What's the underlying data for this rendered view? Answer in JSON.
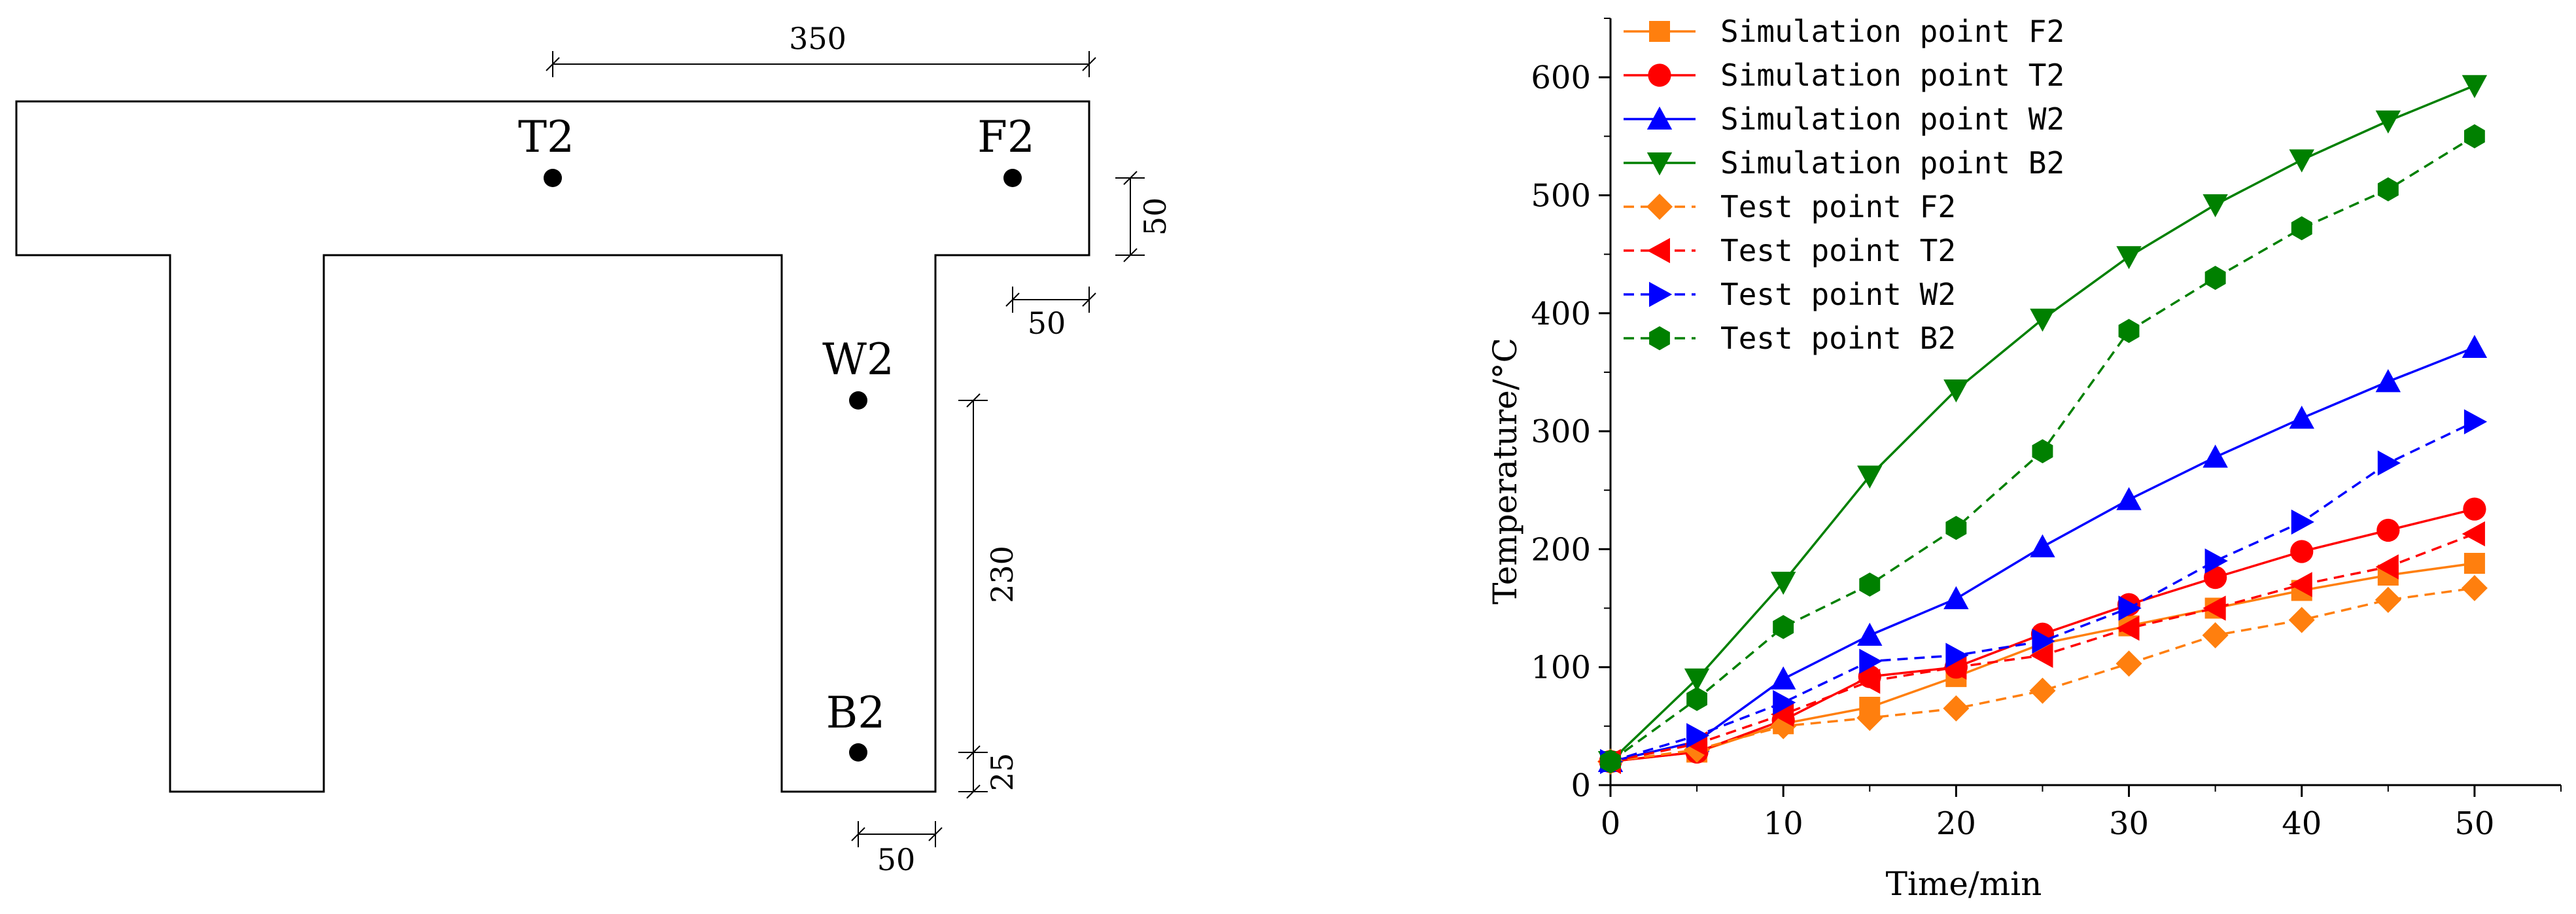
{
  "diagram": {
    "points": [
      {
        "id": "t2",
        "label": "T2"
      },
      {
        "id": "f2",
        "label": "F2"
      },
      {
        "id": "w2",
        "label": "W2"
      },
      {
        "id": "b2",
        "label": "B2"
      }
    ],
    "dimensions": {
      "top_width": "350",
      "flange_thickness": "50",
      "flange_offset": "50",
      "web_height": "230",
      "bottom_offset": "25",
      "bottom_width": "50"
    }
  },
  "chart_data": {
    "type": "line",
    "xlabel": "Time/min",
    "ylabel": "Temperature/°C",
    "xlim": [
      0,
      55
    ],
    "ylim": [
      0,
      650
    ],
    "xticks": [
      0,
      10,
      20,
      30,
      40,
      50
    ],
    "yticks": [
      0,
      100,
      200,
      300,
      400,
      500,
      600
    ],
    "legend_position": "top-left",
    "series": [
      {
        "name": "Simulation point F2",
        "color": "#ff7f0e",
        "marker": "square",
        "dash": "solid",
        "x": [
          0,
          5,
          10,
          15,
          20,
          25,
          30,
          35,
          40,
          45,
          50
        ],
        "y": [
          20,
          28,
          52,
          66,
          92,
          120,
          135,
          150,
          165,
          178,
          188
        ]
      },
      {
        "name": "Simulation point T2",
        "color": "#ff0000",
        "marker": "circle",
        "dash": "solid",
        "x": [
          0,
          5,
          10,
          15,
          20,
          25,
          30,
          35,
          40,
          45,
          50
        ],
        "y": [
          20,
          28,
          55,
          92,
          100,
          128,
          153,
          176,
          198,
          216,
          234
        ]
      },
      {
        "name": "Simulation point W2",
        "color": "#0000ff",
        "marker": "triangle-up",
        "dash": "solid",
        "x": [
          0,
          5,
          10,
          15,
          20,
          25,
          30,
          35,
          40,
          45,
          50
        ],
        "y": [
          20,
          37,
          90,
          127,
          158,
          202,
          242,
          278,
          311,
          342,
          371
        ]
      },
      {
        "name": "Simulation point B2",
        "color": "#008000",
        "marker": "triangle-down",
        "dash": "solid",
        "x": [
          0,
          5,
          10,
          15,
          20,
          25,
          30,
          35,
          40,
          45,
          50
        ],
        "y": [
          20,
          90,
          172,
          262,
          335,
          395,
          448,
          492,
          530,
          563,
          593
        ]
      },
      {
        "name": "Test point F2",
        "color": "#ff7f0e",
        "marker": "diamond",
        "dash": "dashed",
        "x": [
          0,
          5,
          10,
          15,
          20,
          25,
          30,
          35,
          40,
          45,
          50
        ],
        "y": [
          20,
          30,
          50,
          57,
          65,
          80,
          103,
          127,
          140,
          157,
          167
        ]
      },
      {
        "name": "Test point T2",
        "color": "#ff0000",
        "marker": "triangle-left",
        "dash": "dashed",
        "x": [
          0,
          5,
          10,
          15,
          20,
          25,
          30,
          35,
          40,
          45,
          50
        ],
        "y": [
          20,
          35,
          60,
          88,
          100,
          110,
          133,
          150,
          170,
          185,
          213
        ]
      },
      {
        "name": "Test point W2",
        "color": "#0000ff",
        "marker": "triangle-right",
        "dash": "dashed",
        "x": [
          0,
          5,
          10,
          15,
          20,
          25,
          30,
          35,
          40,
          45,
          50
        ],
        "y": [
          20,
          42,
          70,
          105,
          110,
          122,
          150,
          190,
          223,
          273,
          308
        ]
      },
      {
        "name": "Test point B2",
        "color": "#008000",
        "marker": "hexagon",
        "dash": "dashed",
        "x": [
          0,
          5,
          10,
          15,
          20,
          25,
          30,
          35,
          40,
          45,
          50
        ],
        "y": [
          20,
          73,
          134,
          170,
          218,
          283,
          385,
          430,
          472,
          505,
          550
        ]
      }
    ]
  }
}
